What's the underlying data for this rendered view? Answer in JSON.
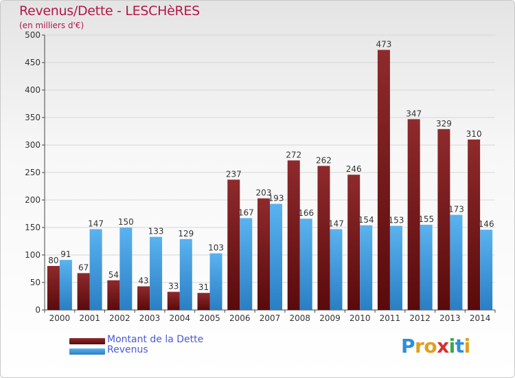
{
  "title": "Revenus/Dette - LESCHèRES",
  "subtitle": "(en milliers d'€)",
  "chart_data": {
    "type": "bar",
    "categories": [
      "2000",
      "2001",
      "2002",
      "2003",
      "2004",
      "2005",
      "2006",
      "2007",
      "2008",
      "2009",
      "2010",
      "2011",
      "2012",
      "2013",
      "2014"
    ],
    "series": [
      {
        "name": "Montant de la Dette",
        "color": "#8b2528",
        "values": [
          80,
          67,
          54,
          43,
          33,
          31,
          237,
          203,
          272,
          262,
          246,
          473,
          347,
          329,
          310
        ]
      },
      {
        "name": "Revenus",
        "color": "#3a9be0",
        "values": [
          91,
          147,
          150,
          133,
          129,
          103,
          167,
          193,
          166,
          147,
          154,
          153,
          155,
          173,
          146
        ]
      }
    ],
    "ylim": [
      0,
      500
    ],
    "yticks": [
      0,
      50,
      100,
      150,
      200,
      250,
      300,
      350,
      400,
      450,
      500
    ],
    "grid": true,
    "legend": "bottom-left"
  },
  "logo": {
    "letters": [
      "P",
      "r",
      "o",
      "x",
      "i",
      "t",
      "i"
    ],
    "colors": [
      "#2d8fd6",
      "#e0a020",
      "#e0a020",
      "#d83030",
      "#3aa84a",
      "#2d8fd6",
      "#e0a020"
    ]
  }
}
